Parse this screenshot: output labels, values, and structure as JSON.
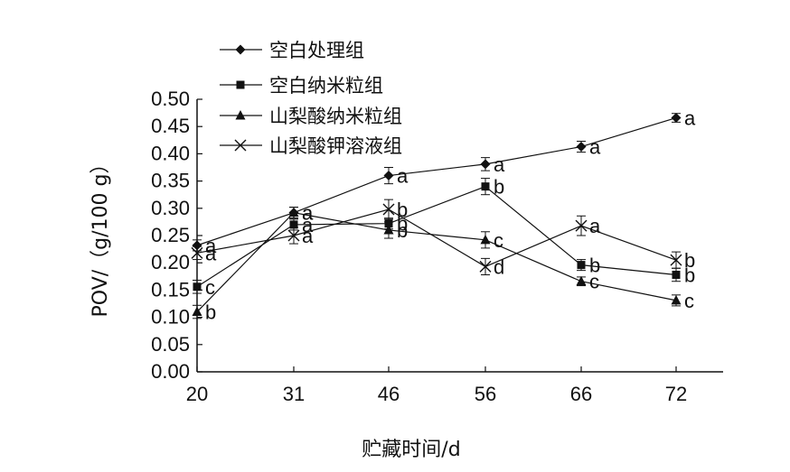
{
  "chart_data": {
    "type": "line",
    "xlabel": "贮藏时间/d",
    "ylabel": "POV/（g/100 g）",
    "categories": [
      "20",
      "31",
      "46",
      "56",
      "66",
      "72"
    ],
    "ylim": [
      0,
      0.5
    ],
    "yticks": [
      "0.00",
      "0.05",
      "0.10",
      "0.15",
      "0.20",
      "0.25",
      "0.30",
      "0.35",
      "0.40",
      "0.45",
      "0.50"
    ],
    "grid": false,
    "legend_position": "top-left",
    "series": [
      {
        "name": "空白处理组",
        "marker": "diamond",
        "values": [
          0.232,
          0.292,
          0.36,
          0.381,
          0.413,
          0.466
        ],
        "errors": [
          0.01,
          0.01,
          0.015,
          0.012,
          0.01,
          0.008
        ],
        "labels": [
          "a",
          "a",
          "a",
          "a",
          "a",
          "a"
        ]
      },
      {
        "name": "空白纳米粒组",
        "marker": "square",
        "values": [
          0.156,
          0.27,
          0.272,
          0.34,
          0.196,
          0.178
        ],
        "errors": [
          0.012,
          0.01,
          0.01,
          0.015,
          0.01,
          0.012
        ],
        "labels": [
          "c",
          "a",
          "b",
          "b",
          "b",
          "b"
        ]
      },
      {
        "name": "山梨酸纳米粒组",
        "marker": "triangle",
        "values": [
          0.11,
          0.292,
          0.26,
          0.242,
          0.166,
          0.131
        ],
        "errors": [
          0.012,
          0.01,
          0.015,
          0.015,
          0.008,
          0.01
        ],
        "labels": [
          "b",
          "a",
          "b",
          "c",
          "c",
          "c"
        ]
      },
      {
        "name": "山梨酸钾溶液组",
        "marker": "x",
        "values": [
          0.218,
          0.25,
          0.298,
          0.193,
          0.268,
          0.205
        ],
        "errors": [
          0.012,
          0.015,
          0.018,
          0.015,
          0.018,
          0.015
        ],
        "labels": [
          "a",
          "a",
          "b",
          "d",
          "a",
          "b"
        ]
      }
    ]
  }
}
